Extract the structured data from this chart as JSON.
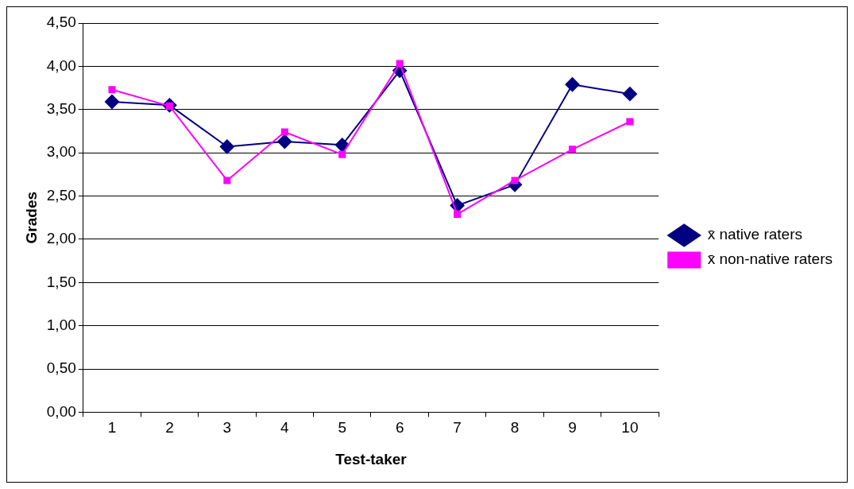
{
  "chart_data": {
    "type": "line",
    "xlabel": "Test-taker",
    "ylabel": "Grades",
    "categories": [
      "1",
      "2",
      "3",
      "4",
      "5",
      "6",
      "7",
      "8",
      "9",
      "10"
    ],
    "series": [
      {
        "name": "x̄ native raters",
        "color": "#000080",
        "marker": "diamond",
        "values": [
          3.59,
          3.55,
          3.07,
          3.13,
          3.09,
          3.95,
          2.39,
          2.63,
          3.79,
          3.68
        ]
      },
      {
        "name": "x̄ non-native raters",
        "color": "#ff00ff",
        "marker": "square",
        "values": [
          3.73,
          3.54,
          2.68,
          3.24,
          2.98,
          4.03,
          2.29,
          2.68,
          3.04,
          3.36
        ]
      }
    ],
    "ylim": [
      0,
      4.5
    ],
    "yticks": [
      {
        "value": 0,
        "label": "0,00"
      },
      {
        "value": 0.5,
        "label": "0,50"
      },
      {
        "value": 1,
        "label": "1,00"
      },
      {
        "value": 1.5,
        "label": "1,50"
      },
      {
        "value": 2,
        "label": "2,00"
      },
      {
        "value": 2.5,
        "label": "2,50"
      },
      {
        "value": 3,
        "label": "3,00"
      },
      {
        "value": 3.5,
        "label": "3,50"
      },
      {
        "value": 4,
        "label": "4,00"
      },
      {
        "value": 4.5,
        "label": "4,50"
      }
    ],
    "grid": "y",
    "legend": "right",
    "line_style": "solid"
  }
}
